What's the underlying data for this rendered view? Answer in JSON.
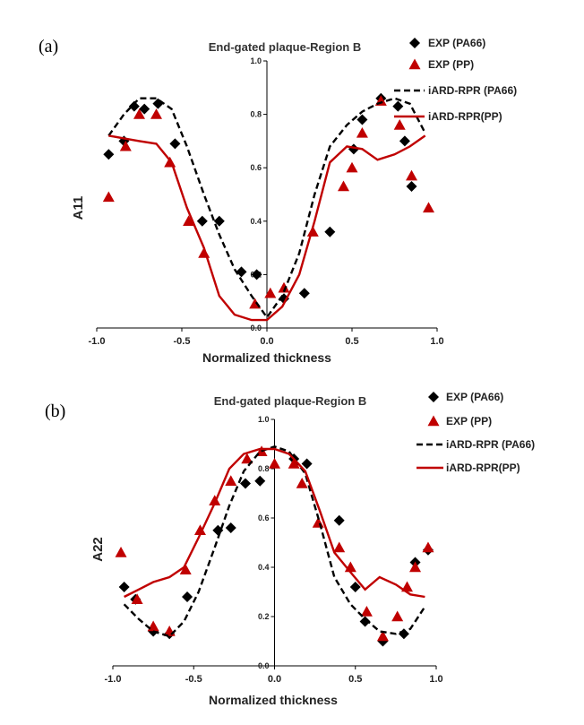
{
  "chart_data": [
    {
      "id": "a",
      "type": "scatter",
      "panel_label": "(a)",
      "title": "End-gated plaque-Region B",
      "xlabel": "Normalized thickness",
      "ylabel": "A11",
      "xlim": [
        -1.0,
        1.0
      ],
      "ylim": [
        0.0,
        1.0
      ],
      "xticks": [
        "-1.0",
        "-0.5",
        "0.0",
        "0.5",
        "1.0"
      ],
      "yticks": [
        "0.0",
        "0.2",
        "0.4",
        "0.6",
        "0.8",
        "1.0"
      ],
      "grid": false,
      "legend_position": "top-right",
      "series": [
        {
          "name": "EXP (PA66)",
          "kind": "markers",
          "marker": "diamond",
          "color": "#000000",
          "x": [
            -0.93,
            -0.84,
            -0.78,
            -0.72,
            -0.64,
            -0.54,
            -0.38,
            -0.28,
            -0.15,
            -0.06,
            0.1,
            0.22,
            0.37,
            0.51,
            0.56,
            0.67,
            0.77,
            0.81,
            0.85
          ],
          "y": [
            0.65,
            0.7,
            0.83,
            0.82,
            0.84,
            0.69,
            0.4,
            0.4,
            0.21,
            0.2,
            0.11,
            0.13,
            0.36,
            0.67,
            0.78,
            0.86,
            0.83,
            0.7,
            0.53
          ]
        },
        {
          "name": "EXP (PP)",
          "kind": "markers",
          "marker": "triangle",
          "color": "#c00000",
          "x": [
            -0.93,
            -0.83,
            -0.75,
            -0.65,
            -0.57,
            -0.46,
            -0.37,
            -0.07,
            0.02,
            0.1,
            0.27,
            0.45,
            0.5,
            0.56,
            0.67,
            0.78,
            0.85,
            0.95
          ],
          "y": [
            0.49,
            0.68,
            0.8,
            0.8,
            0.62,
            0.4,
            0.28,
            0.09,
            0.13,
            0.15,
            0.36,
            0.53,
            0.6,
            0.73,
            0.85,
            0.76,
            0.57,
            0.45
          ]
        },
        {
          "name": "iARD-RPR (PA66)",
          "kind": "line",
          "dash": true,
          "color": "#000000",
          "x": [
            -0.93,
            -0.84,
            -0.75,
            -0.65,
            -0.56,
            -0.47,
            -0.37,
            -0.28,
            -0.19,
            -0.09,
            0.0,
            0.09,
            0.19,
            0.28,
            0.37,
            0.47,
            0.56,
            0.65,
            0.75,
            0.84,
            0.93
          ],
          "y": [
            0.72,
            0.8,
            0.86,
            0.86,
            0.82,
            0.68,
            0.5,
            0.35,
            0.22,
            0.12,
            0.04,
            0.12,
            0.28,
            0.5,
            0.68,
            0.76,
            0.81,
            0.84,
            0.86,
            0.84,
            0.73
          ]
        },
        {
          "name": "iARD-RPR(PP)",
          "kind": "line",
          "dash": false,
          "color": "#c00000",
          "x": [
            -0.93,
            -0.84,
            -0.75,
            -0.65,
            -0.56,
            -0.47,
            -0.37,
            -0.28,
            -0.19,
            -0.09,
            0.0,
            0.09,
            0.19,
            0.28,
            0.37,
            0.47,
            0.56,
            0.65,
            0.75,
            0.84,
            0.93
          ],
          "y": [
            0.72,
            0.71,
            0.7,
            0.69,
            0.62,
            0.45,
            0.3,
            0.12,
            0.05,
            0.03,
            0.03,
            0.08,
            0.2,
            0.4,
            0.62,
            0.68,
            0.67,
            0.63,
            0.65,
            0.68,
            0.72
          ]
        }
      ]
    },
    {
      "id": "b",
      "type": "scatter",
      "panel_label": "(b)",
      "title": "End-gated plaque-Region B",
      "xlabel": "Normalized thickness",
      "ylabel": "A22",
      "xlim": [
        -1.0,
        1.0
      ],
      "ylim": [
        0.0,
        1.0
      ],
      "xticks": [
        "-1.0",
        "-0.5",
        "0.0",
        "0.5",
        "1.0"
      ],
      "yticks": [
        "0.0",
        "0.2",
        "0.4",
        "0.6",
        "0.8",
        "1.0"
      ],
      "grid": false,
      "legend_position": "top-right",
      "series": [
        {
          "name": "EXP (PA66)",
          "kind": "markers",
          "marker": "diamond",
          "color": "#000000",
          "x": [
            -0.93,
            -0.86,
            -0.75,
            -0.65,
            -0.54,
            -0.35,
            -0.27,
            -0.18,
            -0.09,
            0.12,
            0.2,
            0.4,
            0.5,
            0.56,
            0.67,
            0.8,
            0.87,
            0.95
          ],
          "y": [
            0.32,
            0.27,
            0.14,
            0.13,
            0.28,
            0.55,
            0.56,
            0.74,
            0.75,
            0.84,
            0.82,
            0.59,
            0.32,
            0.18,
            0.1,
            0.13,
            0.42,
            0.47
          ]
        },
        {
          "name": "EXP (PP)",
          "kind": "markers",
          "marker": "triangle",
          "color": "#c00000",
          "x": [
            -0.95,
            -0.85,
            -0.75,
            -0.65,
            -0.55,
            -0.46,
            -0.37,
            -0.27,
            -0.17,
            -0.08,
            0.0,
            0.12,
            0.17,
            0.27,
            0.4,
            0.47,
            0.57,
            0.67,
            0.76,
            0.82,
            0.87,
            0.95
          ],
          "y": [
            0.46,
            0.27,
            0.16,
            0.14,
            0.39,
            0.55,
            0.67,
            0.75,
            0.84,
            0.87,
            0.82,
            0.82,
            0.74,
            0.58,
            0.48,
            0.4,
            0.22,
            0.12,
            0.2,
            0.32,
            0.4,
            0.48
          ]
        },
        {
          "name": "iARD-RPR (PA66)",
          "kind": "line",
          "dash": true,
          "color": "#000000",
          "x": [
            -0.93,
            -0.84,
            -0.75,
            -0.65,
            -0.56,
            -0.47,
            -0.37,
            -0.28,
            -0.19,
            -0.09,
            0.0,
            0.09,
            0.19,
            0.28,
            0.37,
            0.47,
            0.56,
            0.65,
            0.75,
            0.84,
            0.93
          ],
          "y": [
            0.25,
            0.19,
            0.14,
            0.12,
            0.18,
            0.3,
            0.48,
            0.65,
            0.79,
            0.87,
            0.89,
            0.87,
            0.78,
            0.58,
            0.36,
            0.25,
            0.19,
            0.14,
            0.13,
            0.15,
            0.24
          ]
        },
        {
          "name": "iARD-RPR(PP)",
          "kind": "line",
          "dash": false,
          "color": "#c00000",
          "x": [
            -0.93,
            -0.84,
            -0.75,
            -0.65,
            -0.56,
            -0.47,
            -0.37,
            -0.28,
            -0.19,
            -0.09,
            0.0,
            0.09,
            0.19,
            0.28,
            0.37,
            0.47,
            0.56,
            0.65,
            0.75,
            0.84,
            0.93
          ],
          "y": [
            0.28,
            0.31,
            0.34,
            0.36,
            0.4,
            0.52,
            0.66,
            0.8,
            0.86,
            0.88,
            0.88,
            0.86,
            0.79,
            0.63,
            0.46,
            0.38,
            0.31,
            0.36,
            0.33,
            0.29,
            0.28
          ]
        }
      ]
    }
  ]
}
